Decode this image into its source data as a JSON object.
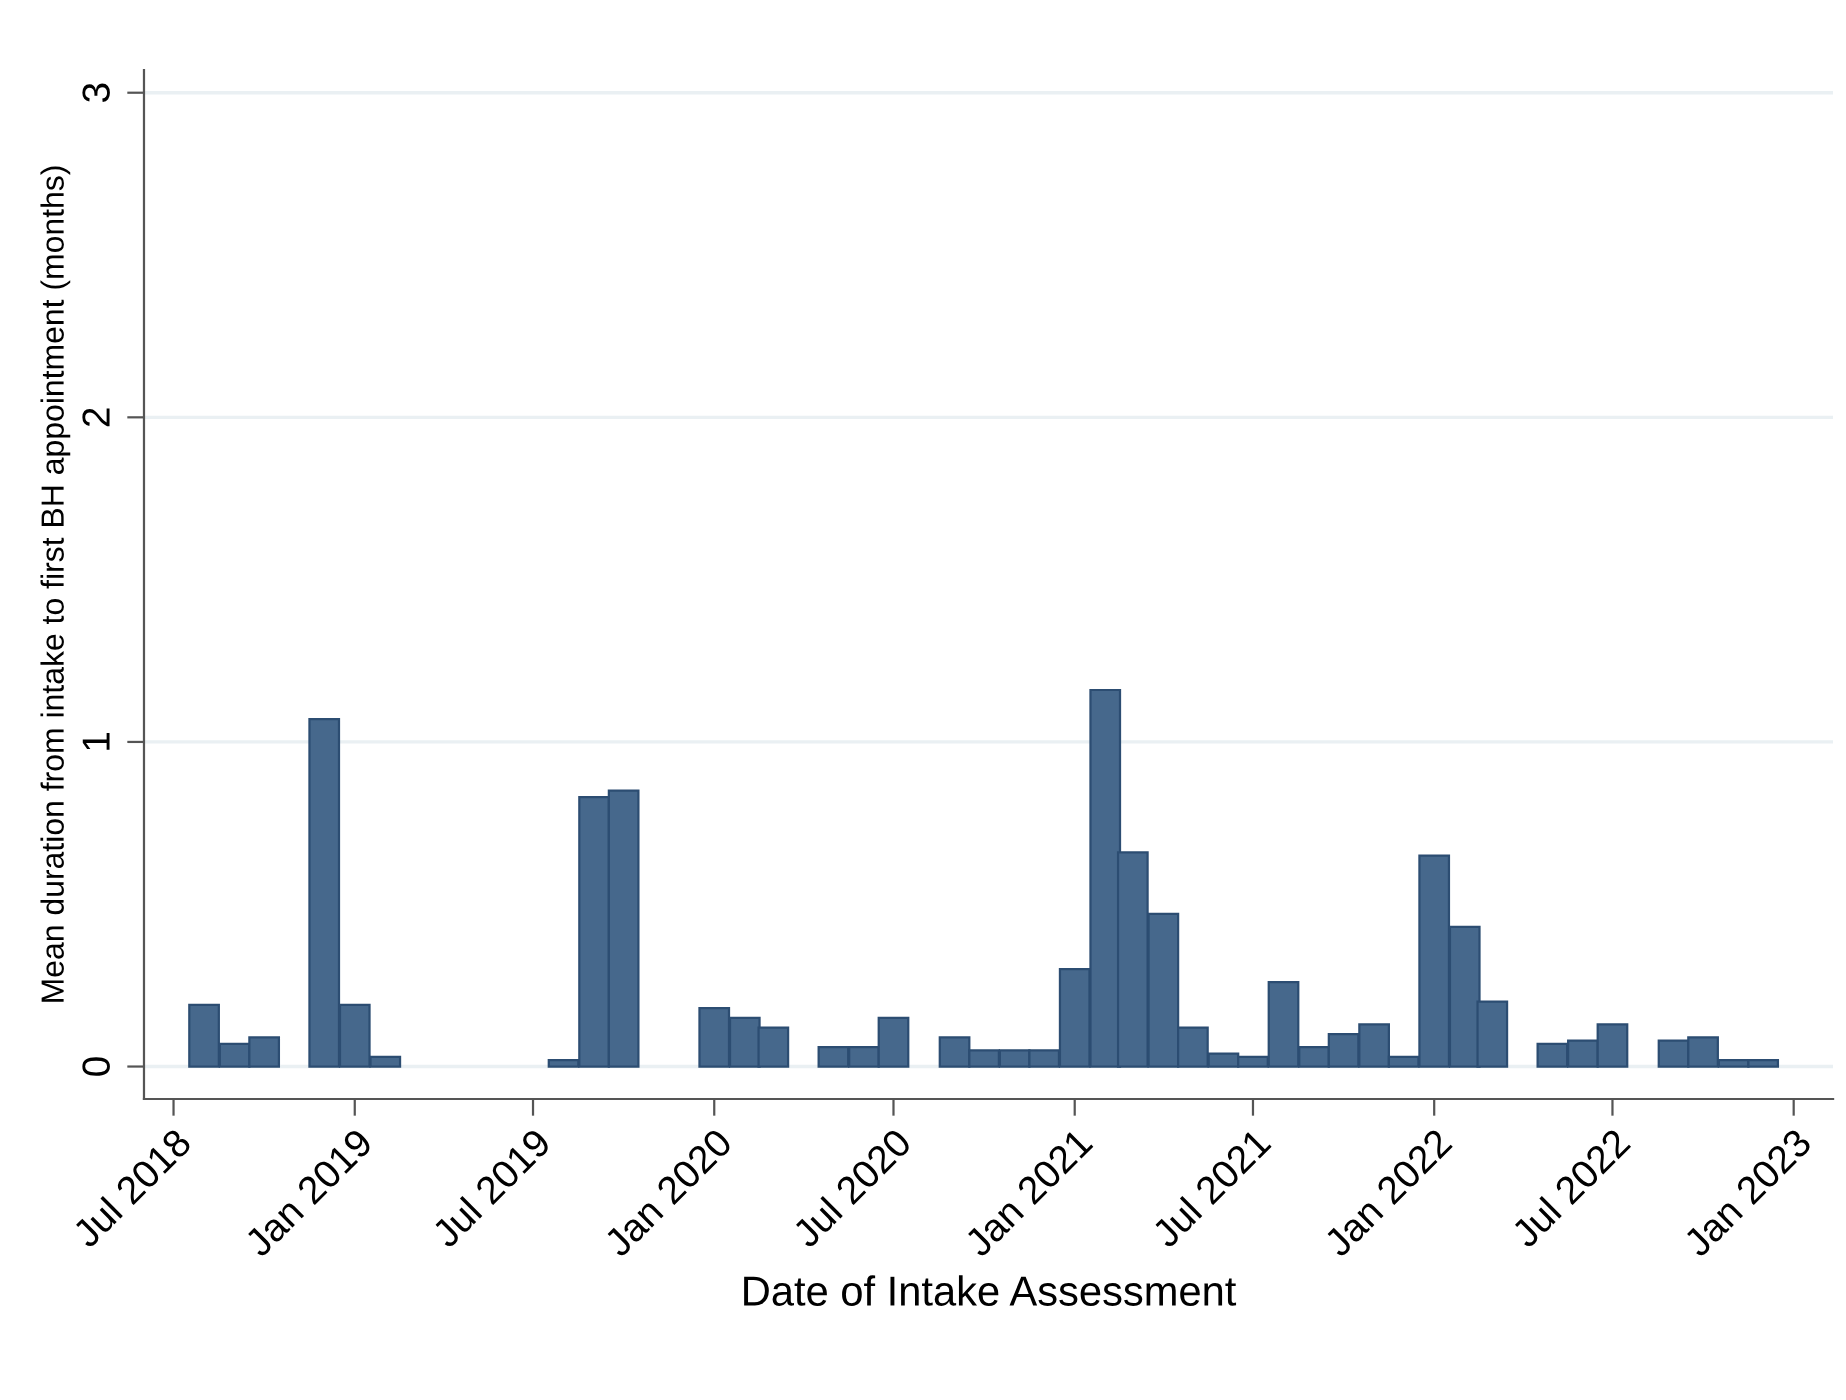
{
  "chart_data": {
    "type": "bar",
    "xlabel": "Date of Intake Assessment",
    "ylabel": "Mean duration from intake to first BH appointment (months)",
    "x": [
      "2018-08",
      "2018-09",
      "2018-10",
      "2018-12",
      "2019-01",
      "2019-02",
      "2019-08",
      "2019-09",
      "2019-10",
      "2020-01",
      "2020-02",
      "2020-03",
      "2020-05",
      "2020-06",
      "2020-07",
      "2020-09",
      "2020-10",
      "2020-11",
      "2020-12",
      "2021-01",
      "2021-02",
      "2021-03",
      "2021-04",
      "2021-05",
      "2021-06",
      "2021-07",
      "2021-08",
      "2021-09",
      "2021-10",
      "2021-11",
      "2021-12",
      "2022-01",
      "2022-02",
      "2022-03",
      "2022-05",
      "2022-06",
      "2022-07",
      "2022-09",
      "2022-10",
      "2022-11",
      "2022-12"
    ],
    "values": [
      0.19,
      0.07,
      0.09,
      1.07,
      0.19,
      0.03,
      0.02,
      0.83,
      0.85,
      0.18,
      0.15,
      0.12,
      0.06,
      0.06,
      0.15,
      0.09,
      0.05,
      0.05,
      0.05,
      0.3,
      1.16,
      0.66,
      0.47,
      0.12,
      0.04,
      0.03,
      0.26,
      0.06,
      0.1,
      0.13,
      0.03,
      0.65,
      0.43,
      0.2,
      0.07,
      0.08,
      0.13,
      0.08,
      0.09,
      0.02,
      0.02
    ],
    "color": "#46688c",
    "xlim": [
      "2018-06-01",
      "2023-02-10"
    ],
    "xticks": [
      {
        "value": "2018-07-01",
        "label": "Jul 2018"
      },
      {
        "value": "2019-01-01",
        "label": "Jan 2019"
      },
      {
        "value": "2019-07-01",
        "label": "Jul 2019"
      },
      {
        "value": "2020-01-01",
        "label": "Jan 2020"
      },
      {
        "value": "2020-07-01",
        "label": "Jul 2020"
      },
      {
        "value": "2021-01-01",
        "label": "Jan 2021"
      },
      {
        "value": "2021-07-01",
        "label": "Jul 2021"
      },
      {
        "value": "2022-01-01",
        "label": "Jan 2022"
      },
      {
        "value": "2022-07-01",
        "label": "Jul 2022"
      },
      {
        "value": "2023-01-01",
        "label": "Jan 2023"
      }
    ],
    "ylim": [
      -0.1,
      3.07
    ],
    "yticks": [
      0,
      1,
      2,
      3
    ],
    "grid": "y",
    "legend": false
  }
}
